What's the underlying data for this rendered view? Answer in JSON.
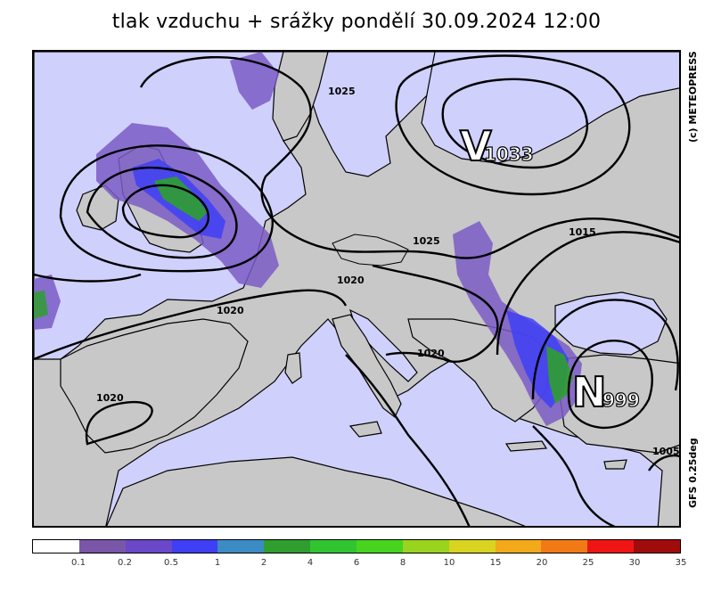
{
  "title": "tlak vzduchu + srážky pondělí 30.09.2024 12:00",
  "credit": "(c) METEOPRESS",
  "model": "GFS 0.25deg",
  "pressure_centers": [
    {
      "letter": "V",
      "value": "1033"
    },
    {
      "letter": "N",
      "value": "999"
    }
  ],
  "isobar_labels": [
    "1025",
    "1025",
    "1020",
    "1020",
    "1020",
    "1020",
    "1015",
    "1005"
  ],
  "legend": {
    "labels": [
      "0.1",
      "0.2",
      "0.5",
      "1",
      "2",
      "4",
      "6",
      "8",
      "10",
      "15",
      "20",
      "25",
      "30",
      "35"
    ],
    "colors": [
      "#ffffff",
      "#7a56a8",
      "#6a48c9",
      "#3f3ff5",
      "#3c8bc4",
      "#2f9e2f",
      "#31c431",
      "#46d41f",
      "#9ad41f",
      "#d9d41f",
      "#f2a91a",
      "#f27a16",
      "#f01515",
      "#a00c0c"
    ]
  },
  "colors": {
    "land": "#c8c8c8",
    "sea": "#cfd0fb",
    "precip_light": "#7a5cc4",
    "precip_medium": "#3f3ff5",
    "precip_heavy": "#2f9e2f",
    "isobar": "#000000"
  }
}
